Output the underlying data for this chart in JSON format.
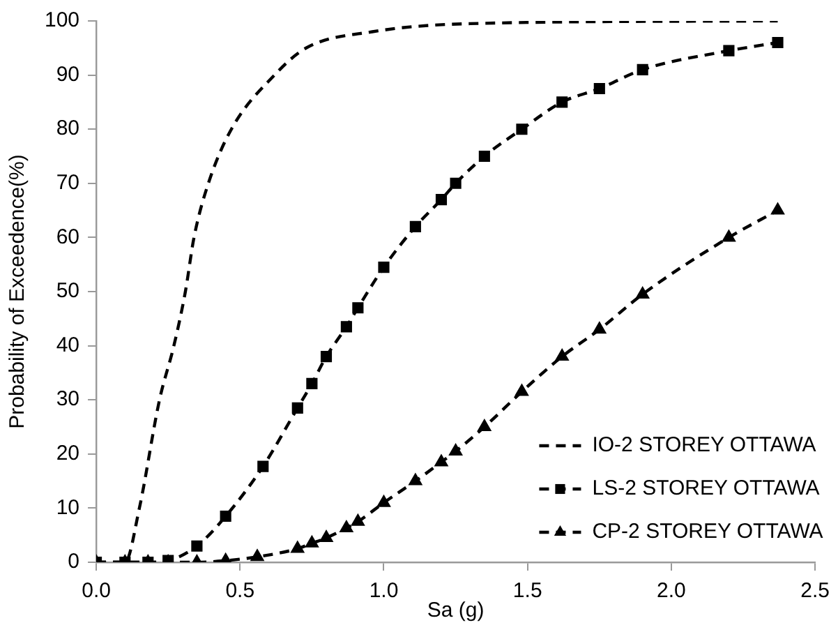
{
  "chart_data": {
    "type": "line",
    "xlabel": "Sa (g)",
    "ylabel": "Probability of Exceedence(%)",
    "xlim": [
      0,
      2.5
    ],
    "xticks": [
      {
        "value": 0,
        "label": "0.0"
      },
      {
        "value": 0.5,
        "label": "0.5"
      },
      {
        "value": 1,
        "label": "1.0"
      },
      {
        "value": 1.5,
        "label": "1.5"
      },
      {
        "value": 2,
        "label": "2.0"
      },
      {
        "value": 2.5,
        "label": "2.5"
      }
    ],
    "ylim": [
      0,
      100
    ],
    "yticks": [
      0,
      10,
      20,
      30,
      40,
      50,
      60,
      70,
      80,
      90,
      100
    ],
    "grid": false,
    "legend": "bottom right",
    "line_style": "dashed",
    "series": [
      {
        "name": "IO-2 STOREY OTTAWA",
        "color": "#000000",
        "marker": "none",
        "x": [
          0,
          0.1,
          0.15,
          0.22,
          0.27,
          0.31,
          0.34,
          0.39,
          0.47,
          0.62,
          0.73,
          0.96,
          1.3,
          2.37
        ],
        "values": [
          0,
          0,
          10,
          30,
          40,
          50,
          60,
          70,
          80,
          90,
          95,
          98,
          99.5,
          100
        ]
      },
      {
        "name": "LS-2 STOREY OTTAWA",
        "color": "#000000",
        "marker": "square",
        "x": [
          0,
          0.1,
          0.18,
          0.25,
          0.35,
          0.45,
          0.58,
          0.7,
          0.75,
          0.8,
          0.87,
          0.91,
          1.0,
          1.11,
          1.2,
          1.25,
          1.35,
          1.48,
          1.62,
          1.75,
          1.9,
          2.2,
          2.37
        ],
        "values": [
          0,
          0,
          0,
          0.3,
          3,
          8.5,
          17.7,
          28.5,
          33,
          38,
          43.5,
          47,
          54.5,
          62,
          67,
          70,
          75,
          80,
          85,
          87.5,
          91,
          94.5,
          96
        ]
      },
      {
        "name": "CP-2 STOREY OTTAWA",
        "color": "#000000",
        "marker": "triangle",
        "x": [
          0,
          0.1,
          0.18,
          0.25,
          0.35,
          0.45,
          0.56,
          0.7,
          0.75,
          0.8,
          0.87,
          0.91,
          1.0,
          1.11,
          1.2,
          1.25,
          1.35,
          1.48,
          1.62,
          1.75,
          1.9,
          2.2,
          2.37
        ],
        "values": [
          0,
          0,
          0,
          0,
          0,
          0.3,
          1,
          2.5,
          3.5,
          4.5,
          6.3,
          7.5,
          11,
          15,
          18.5,
          20.5,
          25,
          31.5,
          38,
          43,
          49.5,
          60,
          65
        ]
      }
    ]
  }
}
